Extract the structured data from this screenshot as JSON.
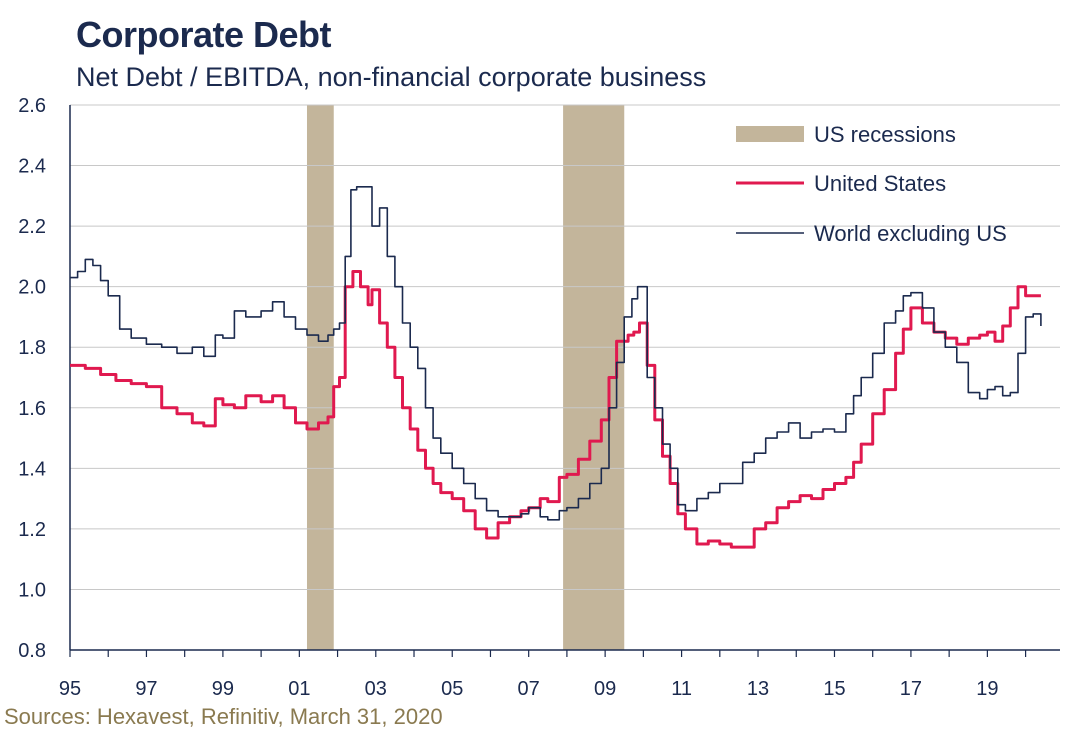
{
  "header": {
    "title": "Corporate Debt",
    "subtitle": "Net Debt / EBITDA, non-financial corporate business"
  },
  "footer": {
    "source": "Sources: Hexavest, Refinitiv, March 31, 2020"
  },
  "colors": {
    "recession": "#c3b59b",
    "us": "#e0194f",
    "world": "#1b2a4e",
    "grid": "#c8c8c8",
    "axis": "#1b2a4e"
  },
  "chart_data": {
    "type": "line",
    "xlim": [
      1995,
      2020.9
    ],
    "ylim": [
      0.8,
      2.6
    ],
    "yticks": [
      0.8,
      1.0,
      1.2,
      1.4,
      1.6,
      1.8,
      2.0,
      2.2,
      2.4,
      2.6
    ],
    "ytick_labels": [
      "0.8",
      "1.0",
      "1.2",
      "1.4",
      "1.6",
      "1.8",
      "2.0",
      "2.2",
      "2.4",
      "2.6"
    ],
    "xticks": [
      1995,
      1997,
      1999,
      2001,
      2003,
      2005,
      2007,
      2009,
      2011,
      2013,
      2015,
      2017,
      2019
    ],
    "xtick_labels": [
      "95",
      "97",
      "99",
      "01",
      "03",
      "05",
      "07",
      "09",
      "11",
      "13",
      "15",
      "17",
      "19"
    ],
    "grid": "horizontal",
    "legend_position": "top-right",
    "legend": [
      "US recessions",
      "United States",
      "World excluding US"
    ],
    "recessions": [
      [
        2001.2,
        2001.9
      ],
      [
        2007.9,
        2009.5
      ]
    ],
    "series": [
      {
        "name": "United States",
        "x": [
          1995.0,
          1995.4,
          1995.8,
          1996.2,
          1996.6,
          1997.0,
          1997.4,
          1997.8,
          1998.2,
          1998.5,
          1998.8,
          1999.0,
          1999.3,
          1999.6,
          2000.0,
          2000.3,
          2000.6,
          2000.9,
          2001.2,
          2001.5,
          2001.75,
          2001.9,
          2002.05,
          2002.2,
          2002.4,
          2002.6,
          2002.8,
          2002.9,
          2003.1,
          2003.3,
          2003.5,
          2003.7,
          2003.9,
          2004.1,
          2004.3,
          2004.5,
          2004.7,
          2005.0,
          2005.3,
          2005.6,
          2005.9,
          2006.2,
          2006.5,
          2006.8,
          2007.0,
          2007.3,
          2007.5,
          2007.8,
          2008.0,
          2008.3,
          2008.6,
          2008.9,
          2009.1,
          2009.3,
          2009.6,
          2009.75,
          2009.9,
          2010.1,
          2010.3,
          2010.5,
          2010.7,
          2010.9,
          2011.1,
          2011.4,
          2011.7,
          2012.0,
          2012.3,
          2012.6,
          2012.9,
          2013.2,
          2013.5,
          2013.8,
          2014.1,
          2014.4,
          2014.7,
          2015.0,
          2015.3,
          2015.5,
          2015.7,
          2016.0,
          2016.3,
          2016.6,
          2016.8,
          2017.0,
          2017.3,
          2017.6,
          2017.9,
          2018.2,
          2018.5,
          2018.8,
          2019.0,
          2019.2,
          2019.4,
          2019.6,
          2019.8,
          2020.0,
          2020.2,
          2020.4
        ],
        "values": [
          1.74,
          1.73,
          1.71,
          1.69,
          1.68,
          1.67,
          1.6,
          1.58,
          1.55,
          1.54,
          1.63,
          1.61,
          1.6,
          1.64,
          1.62,
          1.64,
          1.6,
          1.55,
          1.53,
          1.55,
          1.57,
          1.67,
          1.7,
          2.0,
          2.05,
          2.0,
          1.94,
          1.99,
          1.88,
          1.8,
          1.7,
          1.6,
          1.53,
          1.46,
          1.4,
          1.35,
          1.32,
          1.3,
          1.26,
          1.2,
          1.17,
          1.22,
          1.24,
          1.26,
          1.27,
          1.3,
          1.29,
          1.37,
          1.38,
          1.43,
          1.49,
          1.56,
          1.7,
          1.82,
          1.84,
          1.85,
          1.88,
          1.74,
          1.56,
          1.44,
          1.35,
          1.25,
          1.2,
          1.15,
          1.16,
          1.15,
          1.14,
          1.14,
          1.2,
          1.22,
          1.27,
          1.29,
          1.31,
          1.3,
          1.33,
          1.35,
          1.37,
          1.42,
          1.48,
          1.58,
          1.66,
          1.78,
          1.86,
          1.93,
          1.88,
          1.85,
          1.83,
          1.81,
          1.83,
          1.84,
          1.85,
          1.82,
          1.87,
          1.93,
          2.0,
          1.97,
          1.97,
          1.97
        ]
      },
      {
        "name": "World excluding US",
        "x": [
          1995.0,
          1995.2,
          1995.4,
          1995.6,
          1995.8,
          1996.0,
          1996.3,
          1996.6,
          1997.0,
          1997.4,
          1997.8,
          1998.2,
          1998.5,
          1998.8,
          1999.0,
          1999.3,
          1999.6,
          2000.0,
          2000.3,
          2000.6,
          2000.9,
          2001.2,
          2001.5,
          2001.75,
          2001.9,
          2002.05,
          2002.2,
          2002.35,
          2002.5,
          2002.7,
          2002.9,
          2003.1,
          2003.3,
          2003.5,
          2003.7,
          2003.9,
          2004.1,
          2004.3,
          2004.5,
          2004.7,
          2005.0,
          2005.3,
          2005.6,
          2005.9,
          2006.2,
          2006.5,
          2006.8,
          2007.0,
          2007.3,
          2007.5,
          2007.8,
          2008.0,
          2008.3,
          2008.6,
          2008.9,
          2009.1,
          2009.3,
          2009.5,
          2009.7,
          2009.85,
          2009.95,
          2010.1,
          2010.3,
          2010.5,
          2010.7,
          2010.9,
          2011.1,
          2011.4,
          2011.7,
          2012.0,
          2012.3,
          2012.6,
          2012.9,
          2013.2,
          2013.5,
          2013.8,
          2014.1,
          2014.4,
          2014.7,
          2015.0,
          2015.3,
          2015.5,
          2015.7,
          2016.0,
          2016.3,
          2016.6,
          2016.8,
          2017.0,
          2017.3,
          2017.6,
          2017.9,
          2018.2,
          2018.5,
          2018.8,
          2019.0,
          2019.2,
          2019.4,
          2019.6,
          2019.8,
          2020.0,
          2020.2,
          2020.4
        ],
        "values": [
          2.03,
          2.05,
          2.09,
          2.07,
          2.02,
          1.97,
          1.86,
          1.83,
          1.81,
          1.8,
          1.78,
          1.8,
          1.77,
          1.84,
          1.83,
          1.92,
          1.9,
          1.92,
          1.95,
          1.9,
          1.86,
          1.84,
          1.82,
          1.84,
          1.86,
          1.88,
          2.1,
          2.32,
          2.33,
          2.33,
          2.2,
          2.26,
          2.1,
          2.0,
          1.88,
          1.8,
          1.73,
          1.6,
          1.5,
          1.45,
          1.4,
          1.35,
          1.3,
          1.26,
          1.24,
          1.24,
          1.25,
          1.27,
          1.24,
          1.23,
          1.26,
          1.27,
          1.3,
          1.35,
          1.4,
          1.6,
          1.75,
          1.9,
          1.96,
          2.0,
          2.0,
          1.7,
          1.6,
          1.48,
          1.4,
          1.28,
          1.26,
          1.3,
          1.32,
          1.35,
          1.35,
          1.42,
          1.45,
          1.5,
          1.52,
          1.55,
          1.5,
          1.52,
          1.53,
          1.52,
          1.58,
          1.64,
          1.7,
          1.78,
          1.88,
          1.92,
          1.97,
          1.98,
          1.93,
          1.85,
          1.8,
          1.75,
          1.65,
          1.63,
          1.66,
          1.67,
          1.64,
          1.65,
          1.78,
          1.9,
          1.91,
          1.87
        ]
      }
    ]
  }
}
